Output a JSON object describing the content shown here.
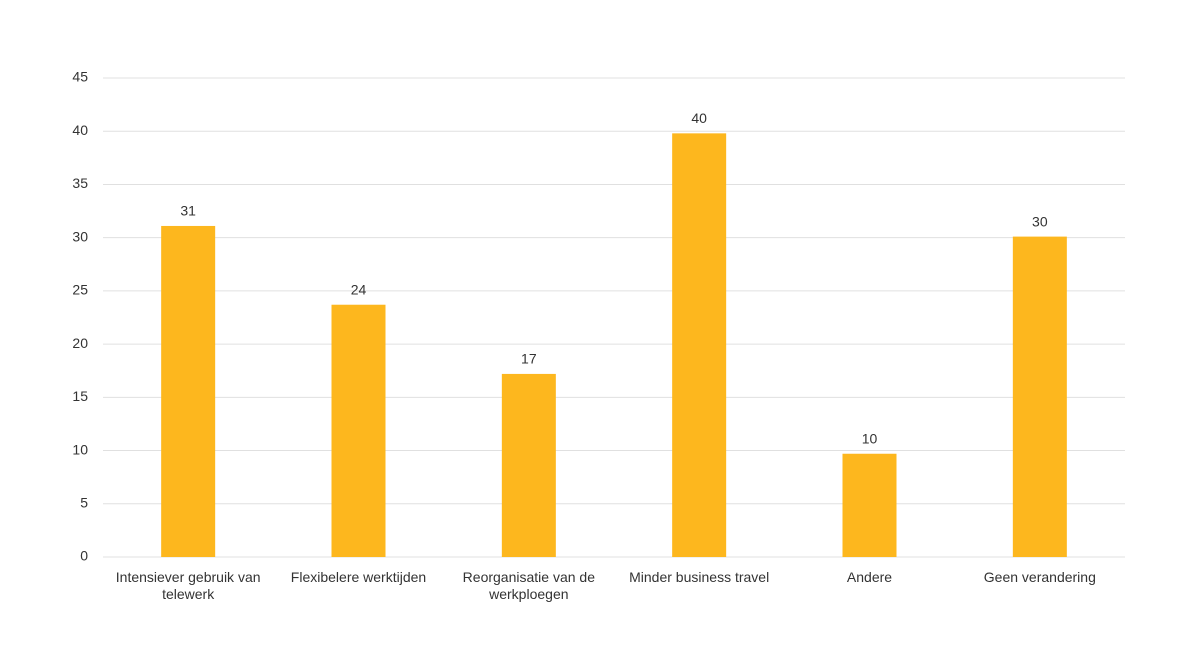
{
  "chart_data": {
    "type": "bar",
    "categories": [
      "Intensiever gebruik van telewerk",
      "Flexibelere werktijden",
      "Reorganisatie van de werkploegen",
      "Minder business travel",
      "Andere",
      "Geen verandering"
    ],
    "values": [
      31.1,
      23.7,
      17.2,
      39.8,
      9.7,
      30.1
    ],
    "value_labels": [
      "31",
      "24",
      "17",
      "40",
      "10",
      "30"
    ],
    "color": "#fdb71e",
    "ylim": [
      0,
      45
    ],
    "yticks": [
      0,
      5,
      10,
      15,
      20,
      25,
      30,
      35,
      40,
      45
    ],
    "grid": true
  }
}
